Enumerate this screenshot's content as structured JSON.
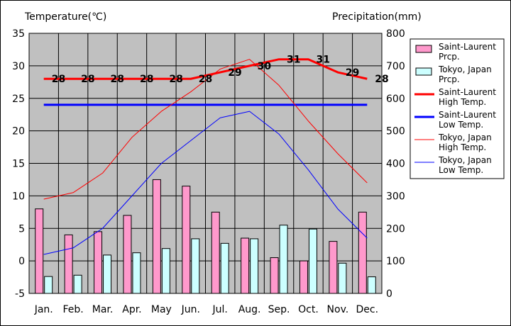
{
  "chart_data": {
    "type": "bar",
    "left_axis_title": "Temperature(℃)",
    "right_axis_title": "Precipitation(mm)",
    "categories": [
      "Jan.",
      "Feb.",
      "Mar.",
      "Apr.",
      "May",
      "Jun.",
      "Jul.",
      "Aug.",
      "Sep.",
      "Oct.",
      "Nov.",
      "Dec."
    ],
    "left_ylim": [
      -5,
      35
    ],
    "left_ticks": [
      -5,
      0,
      5,
      10,
      15,
      20,
      25,
      30,
      35
    ],
    "right_ylim": [
      0,
      800
    ],
    "right_ticks": [
      0,
      100,
      200,
      300,
      400,
      500,
      600,
      700,
      800
    ],
    "grid": true,
    "legend_position": "right",
    "plot_background": "#c0c0c0",
    "series": [
      {
        "name": "Saint-Laurent Prcp.",
        "legend_lines": [
          "Saint-Laurent",
          "Prcp."
        ],
        "kind": "bar",
        "axis": "right",
        "color": "#ff99cc",
        "values": [
          260,
          180,
          190,
          240,
          350,
          330,
          250,
          170,
          110,
          100,
          160,
          250
        ]
      },
      {
        "name": "Tokyo, Japan Prcp.",
        "legend_lines": [
          "Tokyo, Japan",
          "Prcp."
        ],
        "kind": "bar",
        "axis": "right",
        "color": "#ccffff",
        "values": [
          52,
          56,
          118,
          125,
          138,
          168,
          154,
          168,
          210,
          198,
          93,
          51
        ]
      },
      {
        "name": "Saint-Laurent High Temp.",
        "legend_lines": [
          "Saint-Laurent",
          "High Temp."
        ],
        "kind": "line",
        "axis": "left",
        "color": "#ff0000",
        "width": 3,
        "values": [
          28,
          28,
          28,
          28,
          28,
          28,
          29,
          30,
          31,
          31,
          29,
          28
        ],
        "data_labels": [
          "28",
          "28",
          "28",
          "28",
          "28",
          "28",
          "29",
          "30",
          "31",
          "31",
          "29",
          "28"
        ]
      },
      {
        "name": "Saint-Laurent Low Temp.",
        "legend_lines": [
          "Saint-Laurent",
          "Low Temp."
        ],
        "kind": "line",
        "axis": "left",
        "color": "#0000ff",
        "width": 3,
        "values": [
          24,
          24,
          24,
          24,
          24,
          24,
          24,
          24,
          24,
          24,
          24,
          24
        ]
      },
      {
        "name": "Tokyo, Japan High Temp.",
        "legend_lines": [
          "Tokyo, Japan",
          "High Temp."
        ],
        "kind": "line",
        "axis": "left",
        "color": "#ff0000",
        "width": 1,
        "values": [
          9.5,
          10.5,
          13.5,
          19,
          23,
          26,
          29.5,
          31,
          27,
          21.5,
          16.5,
          12
        ]
      },
      {
        "name": "Tokyo, Japan Low Temp.",
        "legend_lines": [
          "Tokyo, Japan",
          "Low Temp."
        ],
        "kind": "line",
        "axis": "left",
        "color": "#0000ff",
        "width": 1,
        "values": [
          1,
          2,
          5,
          10,
          15,
          18.5,
          22,
          23,
          19.5,
          14,
          8,
          3.5
        ]
      }
    ]
  }
}
